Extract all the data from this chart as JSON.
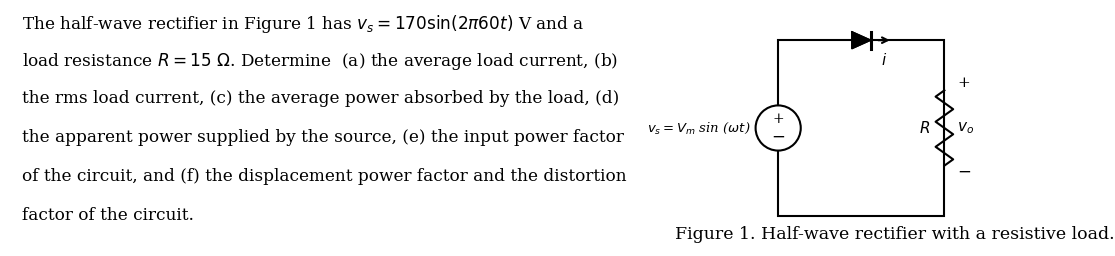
{
  "bg_color": "#ffffff",
  "text_lines": [
    "The half-wave rectifier in Figure 1 has $v_s = 170\\sin(2\\pi 60t)$ V and a",
    "load resistance $R = 15\\ \\Omega$. Determine  (a) the average load current, (b)",
    "the rms load current, (c) the average power absorbed by the load, (d)",
    "the apparent power supplied by the source, (e) the input power factor",
    "of the circuit, and (f) the displacement power factor and the distortion",
    "factor of the circuit."
  ],
  "figure_caption": "Figure 1. Half-wave rectifier with a resistive load.",
  "font_size": 12.2,
  "caption_font_size": 12.5,
  "source_label": "$v_s = V_m$ sin ($\\omega t$)",
  "current_label": "$i$",
  "R_label": "$R$",
  "vo_label": "$v_o$"
}
